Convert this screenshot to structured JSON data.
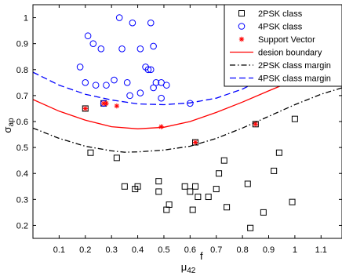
{
  "chart_data": {
    "type": "scatter",
    "title": "",
    "xlabel": {
      "base": "μ",
      "sup": "f",
      "sub": "42"
    },
    "ylabel": {
      "base": "σ",
      "sub": "ap"
    },
    "xlim": [
      0,
      1.18
    ],
    "ylim": [
      0.15,
      1.05
    ],
    "xticks": [
      0.1,
      0.2,
      0.3,
      0.4,
      0.5,
      0.6,
      0.7,
      0.8,
      0.9,
      1,
      1.1
    ],
    "xtick_labels": [
      "0.1",
      "0.2",
      "0.3",
      "0.4",
      "0.5",
      "0.6",
      "0.7",
      "0.8",
      "0.9",
      "1",
      "1.1"
    ],
    "yticks": [
      0.2,
      0.3,
      0.4,
      0.5,
      0.6,
      0.7,
      0.8,
      0.9,
      1
    ],
    "ytick_labels": [
      "0.2",
      "0.3",
      "0.4",
      "0.5",
      "0.6",
      "0.7",
      "0.8",
      "0.9",
      "1"
    ],
    "grid": false,
    "legend_position": "top-right",
    "legend": [
      {
        "label": "2PSK class",
        "marker": "square",
        "color": "#000000"
      },
      {
        "label": "4PSK class",
        "marker": "circle",
        "color": "#0000ff"
      },
      {
        "label": "Support Vector",
        "marker": "star",
        "color": "#ff0000"
      },
      {
        "label": "desion boundary",
        "line": "solid",
        "color": "#ff0000"
      },
      {
        "label": "2PSK class margin",
        "line": "dashdot",
        "color": "#000000"
      },
      {
        "label": "4PSK class margin",
        "line": "dashed",
        "color": "#0000ff"
      }
    ],
    "series": [
      {
        "name": "2PSK class",
        "marker": "square",
        "color": "#000000",
        "points": [
          [
            0.2,
            0.65
          ],
          [
            0.22,
            0.48
          ],
          [
            0.27,
            0.67
          ],
          [
            0.32,
            0.46
          ],
          [
            0.35,
            0.35
          ],
          [
            0.39,
            0.34
          ],
          [
            0.4,
            0.35
          ],
          [
            0.48,
            0.37
          ],
          [
            0.48,
            0.33
          ],
          [
            0.51,
            0.26
          ],
          [
            0.52,
            0.28
          ],
          [
            0.58,
            0.35
          ],
          [
            0.6,
            0.33
          ],
          [
            0.61,
            0.26
          ],
          [
            0.62,
            0.52
          ],
          [
            0.62,
            0.35
          ],
          [
            0.63,
            0.31
          ],
          [
            0.67,
            0.31
          ],
          [
            0.7,
            0.34
          ],
          [
            0.71,
            0.4
          ],
          [
            0.73,
            0.45
          ],
          [
            0.74,
            0.27
          ],
          [
            0.82,
            0.36
          ],
          [
            0.83,
            0.19
          ],
          [
            0.85,
            0.59
          ],
          [
            0.88,
            0.25
          ],
          [
            0.92,
            0.41
          ],
          [
            0.94,
            0.48
          ],
          [
            0.99,
            0.29
          ],
          [
            1.0,
            0.61
          ]
        ]
      },
      {
        "name": "4PSK class",
        "marker": "circle",
        "color": "#0000ff",
        "points": [
          [
            0.18,
            0.81
          ],
          [
            0.2,
            0.75
          ],
          [
            0.21,
            0.93
          ],
          [
            0.23,
            0.9
          ],
          [
            0.24,
            0.74
          ],
          [
            0.26,
            0.88
          ],
          [
            0.28,
            0.74
          ],
          [
            0.31,
            0.76
          ],
          [
            0.33,
            1.0
          ],
          [
            0.34,
            0.88
          ],
          [
            0.36,
            0.75
          ],
          [
            0.37,
            0.7
          ],
          [
            0.38,
            0.98
          ],
          [
            0.41,
            0.88
          ],
          [
            0.41,
            0.71
          ],
          [
            0.43,
            0.81
          ],
          [
            0.44,
            0.8
          ],
          [
            0.45,
            0.8
          ],
          [
            0.45,
            0.98
          ],
          [
            0.46,
            0.89
          ],
          [
            0.46,
            0.73
          ],
          [
            0.47,
            0.75
          ],
          [
            0.49,
            0.69
          ],
          [
            0.49,
            0.75
          ],
          [
            0.51,
            0.74
          ],
          [
            0.6,
            0.67
          ],
          [
            0.27,
            0.67
          ]
        ]
      },
      {
        "name": "Support Vector",
        "marker": "star",
        "color": "#ff0000",
        "points": [
          [
            0.2,
            0.65
          ],
          [
            0.27,
            0.67
          ],
          [
            0.28,
            0.67
          ],
          [
            0.32,
            0.66
          ],
          [
            0.49,
            0.58
          ],
          [
            0.62,
            0.52
          ],
          [
            0.85,
            0.59
          ]
        ]
      },
      {
        "name": "desion boundary",
        "line": "solid",
        "color": "#ff0000",
        "points": [
          [
            0.0,
            0.685
          ],
          [
            0.1,
            0.64
          ],
          [
            0.2,
            0.605
          ],
          [
            0.3,
            0.58
          ],
          [
            0.4,
            0.572
          ],
          [
            0.5,
            0.578
          ],
          [
            0.6,
            0.6
          ],
          [
            0.7,
            0.635
          ],
          [
            0.8,
            0.675
          ],
          [
            0.9,
            0.718
          ],
          [
            1.0,
            0.76
          ],
          [
            1.05,
            0.785
          ]
        ]
      },
      {
        "name": "2PSK class margin",
        "line": "dashdot",
        "color": "#000000",
        "points": [
          [
            0.0,
            0.575
          ],
          [
            0.1,
            0.535
          ],
          [
            0.2,
            0.505
          ],
          [
            0.3,
            0.487
          ],
          [
            0.35,
            0.482
          ],
          [
            0.4,
            0.483
          ],
          [
            0.5,
            0.49
          ],
          [
            0.6,
            0.505
          ],
          [
            0.7,
            0.535
          ],
          [
            0.8,
            0.575
          ],
          [
            0.9,
            0.62
          ],
          [
            1.0,
            0.665
          ],
          [
            1.1,
            0.705
          ],
          [
            1.18,
            0.73
          ]
        ]
      },
      {
        "name": "4PSK class margin",
        "line": "dashed",
        "color": "#0000ff",
        "points": [
          [
            0.0,
            0.79
          ],
          [
            0.1,
            0.74
          ],
          [
            0.2,
            0.705
          ],
          [
            0.3,
            0.683
          ],
          [
            0.4,
            0.668
          ],
          [
            0.5,
            0.665
          ],
          [
            0.6,
            0.672
          ],
          [
            0.7,
            0.69
          ],
          [
            0.8,
            0.725
          ],
          [
            0.85,
            0.75
          ]
        ]
      }
    ]
  }
}
